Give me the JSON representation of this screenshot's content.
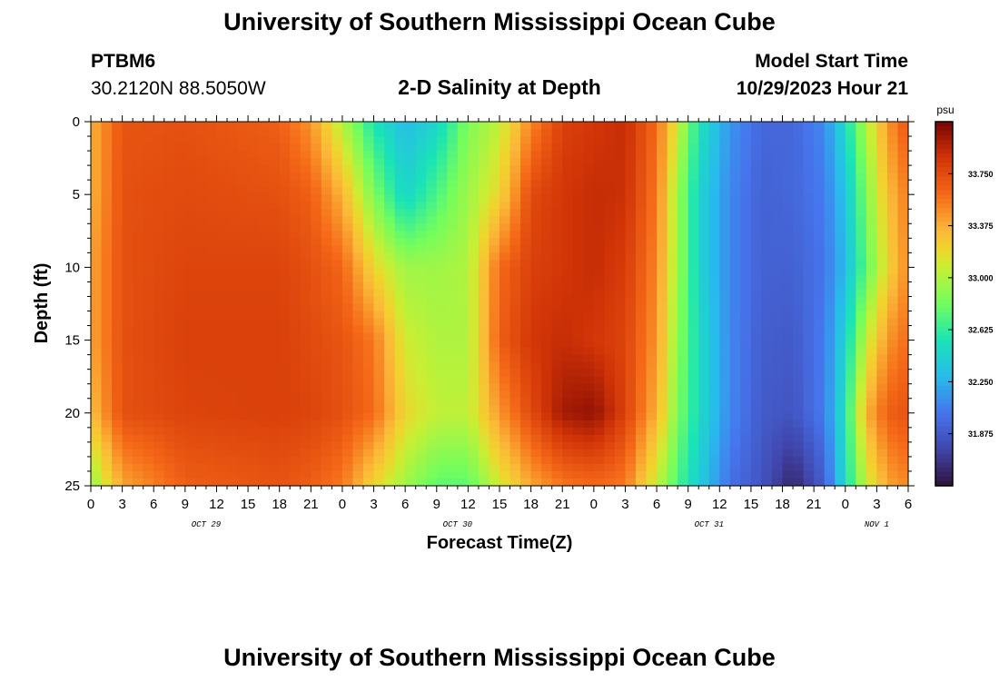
{
  "titles": {
    "top": "University of Southern Mississippi Ocean Cube",
    "bottom": "University of Southern Mississippi Ocean Cube",
    "station": "PTBM6",
    "coords": "30.2120N  88.5050W",
    "plot_title": "2-D Salinity at Depth",
    "model_start_label": "Model Start Time",
    "model_start_value": "10/29/2023 Hour 21"
  },
  "chart_data": {
    "type": "heatmap",
    "title": "2-D Salinity at Depth",
    "xlabel": "Forecast Time(Z)",
    "ylabel": "Depth (ft)",
    "colorbar_unit": "psu",
    "x_range_hours": [
      0,
      78
    ],
    "y_range_ft": [
      0,
      25
    ],
    "y_reversed": true,
    "x_tick_labels": [
      "0",
      "3",
      "6",
      "9",
      "12",
      "15",
      "18",
      "21",
      "0",
      "3",
      "6",
      "9",
      "12",
      "15",
      "18",
      "21",
      "0",
      "3",
      "6",
      "9",
      "12",
      "15",
      "18",
      "21",
      "0",
      "3",
      "6"
    ],
    "y_ticks": [
      0,
      5,
      10,
      15,
      20,
      25
    ],
    "day_labels": [
      {
        "label": "OCT 29",
        "hour": 11
      },
      {
        "label": "OCT 30",
        "hour": 35
      },
      {
        "label": "OCT 31",
        "hour": 59
      },
      {
        "label": "NOV 1",
        "hour": 75
      }
    ],
    "colorbar": {
      "min": 31.5,
      "max": 34.125,
      "ticks": [
        31.875,
        32.25,
        32.625,
        33.0,
        33.375,
        33.75
      ],
      "tick_labels": [
        "31.875",
        "32.250",
        "32.625",
        "33.000",
        "33.375",
        "33.750"
      ]
    },
    "depth_profiles_ft": [
      0,
      5,
      10,
      15,
      20,
      25
    ],
    "salinity_time_series": [
      {
        "hour": 0,
        "values": [
          33.35,
          33.35,
          33.4,
          33.4,
          33.3,
          32.9
        ]
      },
      {
        "hour": 3,
        "values": [
          33.7,
          33.72,
          33.72,
          33.72,
          33.72,
          33.4
        ]
      },
      {
        "hour": 9,
        "values": [
          33.72,
          33.75,
          33.78,
          33.8,
          33.78,
          33.65
        ]
      },
      {
        "hour": 18,
        "values": [
          33.65,
          33.72,
          33.78,
          33.8,
          33.8,
          33.7
        ]
      },
      {
        "hour": 21,
        "values": [
          33.45,
          33.65,
          33.72,
          33.75,
          33.78,
          33.65
        ]
      },
      {
        "hour": 24,
        "values": [
          33.0,
          33.35,
          33.62,
          33.7,
          33.72,
          33.55
        ]
      },
      {
        "hour": 27,
        "values": [
          32.55,
          32.85,
          33.2,
          33.55,
          33.6,
          33.2
        ]
      },
      {
        "hour": 30,
        "values": [
          32.3,
          32.45,
          32.95,
          33.1,
          33.2,
          32.95
        ]
      },
      {
        "hour": 33,
        "values": [
          32.45,
          32.7,
          32.95,
          33.0,
          33.05,
          32.75
        ]
      },
      {
        "hour": 36,
        "values": [
          32.85,
          32.95,
          33.0,
          33.0,
          33.05,
          32.75
        ]
      },
      {
        "hour": 39,
        "values": [
          33.05,
          33.2,
          33.6,
          33.65,
          33.45,
          33.1
        ]
      },
      {
        "hour": 42,
        "values": [
          33.5,
          33.75,
          33.8,
          33.85,
          33.75,
          33.4
        ]
      },
      {
        "hour": 45,
        "values": [
          33.8,
          33.85,
          33.85,
          33.9,
          34.0,
          33.55
        ]
      },
      {
        "hour": 48,
        "values": [
          33.85,
          33.9,
          33.9,
          33.85,
          34.05,
          33.6
        ]
      },
      {
        "hour": 51,
        "values": [
          33.9,
          33.88,
          33.82,
          33.78,
          33.8,
          33.55
        ]
      },
      {
        "hour": 54,
        "values": [
          33.6,
          33.55,
          33.5,
          33.45,
          33.35,
          33.05
        ]
      },
      {
        "hour": 56,
        "values": [
          33.1,
          32.95,
          32.95,
          32.9,
          32.85,
          32.7
        ]
      },
      {
        "hour": 58,
        "values": [
          32.55,
          32.45,
          32.45,
          32.5,
          32.5,
          32.4
        ]
      },
      {
        "hour": 61,
        "values": [
          32.15,
          32.1,
          32.1,
          32.1,
          32.1,
          32.0
        ]
      },
      {
        "hour": 64,
        "values": [
          31.95,
          31.92,
          31.92,
          31.9,
          31.88,
          31.85
        ]
      },
      {
        "hour": 67,
        "values": [
          31.95,
          31.95,
          31.92,
          31.88,
          31.85,
          31.6
        ]
      },
      {
        "hour": 70,
        "values": [
          32.1,
          32.05,
          32.02,
          32.05,
          32.05,
          31.9
        ]
      },
      {
        "hour": 72,
        "values": [
          32.5,
          32.35,
          32.3,
          32.45,
          32.55,
          32.5
        ]
      },
      {
        "hour": 74,
        "values": [
          33.0,
          32.85,
          32.75,
          33.05,
          33.35,
          33.05
        ]
      },
      {
        "hour": 76,
        "values": [
          33.45,
          33.3,
          33.2,
          33.45,
          33.65,
          33.4
        ]
      },
      {
        "hour": 78,
        "values": [
          33.7,
          33.55,
          33.5,
          33.6,
          33.7,
          33.5
        ]
      }
    ]
  }
}
